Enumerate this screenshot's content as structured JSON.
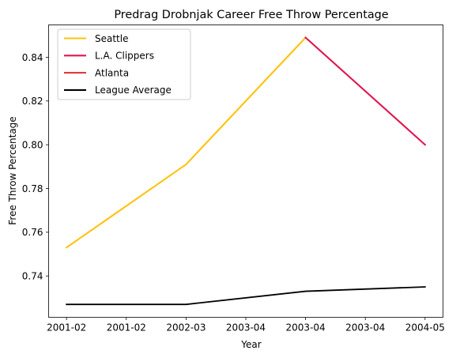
{
  "chart_data": {
    "type": "line",
    "title": "Predrag Drobnjak Career Free Throw Percentage",
    "xlabel": "Year",
    "ylabel": "Free Throw Percentage",
    "x_tick_labels": [
      "2001-02",
      "2001-02",
      "2002-03",
      "2003-04",
      "2003-04",
      "2003-04",
      "2004-05"
    ],
    "x_tick_positions": [
      2001.0,
      2001.5,
      2002.0,
      2002.5,
      2003.0,
      2003.5,
      2004.0
    ],
    "xlim": [
      2000.85,
      2004.15
    ],
    "ylim": [
      0.7211,
      0.8548
    ],
    "y_ticks": [
      0.74,
      0.76,
      0.78,
      0.8,
      0.82,
      0.84
    ],
    "y_tick_labels": [
      "0.74",
      "0.76",
      "0.78",
      "0.80",
      "0.82",
      "0.84"
    ],
    "grid": false,
    "legend_position": "upper-left",
    "series": [
      {
        "name": "Seattle",
        "color": "#FFC20E",
        "x": [
          2001,
          2002,
          2003
        ],
        "y": [
          0.753,
          0.791,
          0.849
        ]
      },
      {
        "name": "L.A. Clippers",
        "color": "#E0174F",
        "x": [
          2003,
          2004
        ],
        "y": [
          0.849,
          0.8
        ]
      },
      {
        "name": "Atlanta",
        "color": "#E03A3E",
        "x": [],
        "y": []
      },
      {
        "name": "League Average",
        "color": "#000000",
        "x": [
          2001,
          2002,
          2003,
          2004
        ],
        "y": [
          0.727,
          0.727,
          0.733,
          0.735
        ]
      }
    ]
  }
}
